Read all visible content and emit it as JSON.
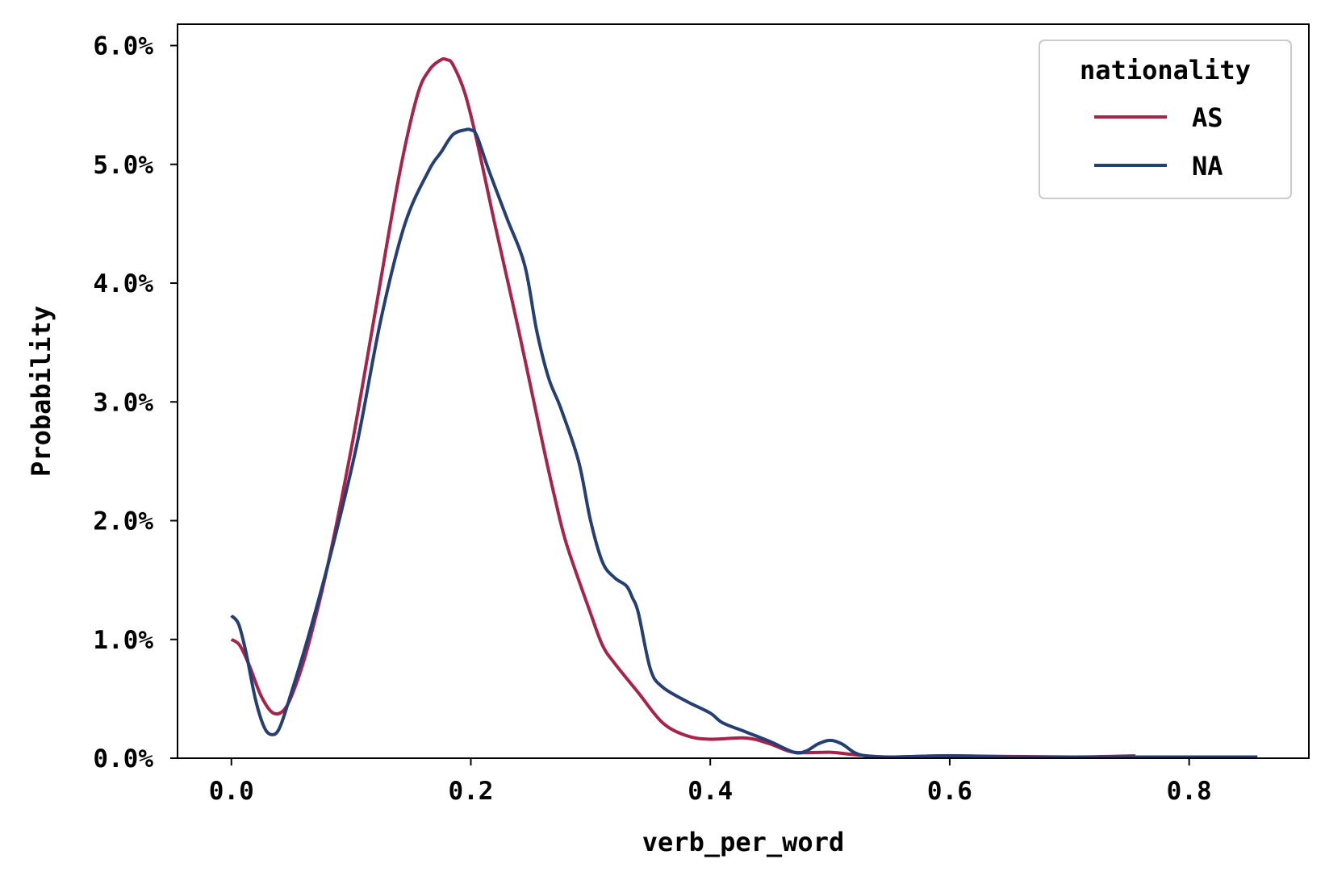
{
  "chart_data": {
    "type": "line",
    "xlabel": "verb_per_word",
    "ylabel": "Probability",
    "xlim": [
      -0.045,
      0.9
    ],
    "ylim": [
      0,
      0.0618
    ],
    "x_ticks": [
      0.0,
      0.2,
      0.4,
      0.6,
      0.8
    ],
    "x_tick_labels": [
      "0.0",
      "0.2",
      "0.4",
      "0.6",
      "0.8"
    ],
    "y_ticks": [
      0,
      0.01,
      0.02,
      0.03,
      0.04,
      0.05,
      0.06
    ],
    "y_tick_labels": [
      "0.0%",
      "1.0%",
      "2.0%",
      "3.0%",
      "4.0%",
      "5.0%",
      "6.0%"
    ],
    "grid": false,
    "legend": {
      "title": "nationality",
      "placement": "top-right"
    },
    "series": [
      {
        "name": "AS",
        "color": "#a8234a",
        "x": [
          0.0,
          0.007,
          0.015,
          0.025,
          0.035,
          0.045,
          0.055,
          0.065,
          0.08,
          0.1,
          0.12,
          0.14,
          0.155,
          0.165,
          0.175,
          0.18,
          0.185,
          0.195,
          0.205,
          0.22,
          0.24,
          0.26,
          0.27,
          0.28,
          0.3,
          0.31,
          0.32,
          0.34,
          0.36,
          0.38,
          0.4,
          0.43,
          0.45,
          0.47,
          0.5,
          0.52,
          0.55,
          0.6,
          0.7,
          0.755
        ],
        "y": [
          0.01,
          0.0095,
          0.0078,
          0.0052,
          0.0038,
          0.0042,
          0.0065,
          0.0098,
          0.016,
          0.026,
          0.0375,
          0.049,
          0.0557,
          0.0579,
          0.0588,
          0.0588,
          0.0584,
          0.056,
          0.052,
          0.045,
          0.036,
          0.0265,
          0.022,
          0.018,
          0.0122,
          0.0095,
          0.008,
          0.0055,
          0.003,
          0.0019,
          0.0016,
          0.0017,
          0.0012,
          0.0005,
          0.0005,
          0.0003,
          0.0001,
          0.0002,
          0.0001,
          0.0002
        ]
      },
      {
        "name": "NA",
        "color": "#243f74",
        "x": [
          0.0,
          0.006,
          0.012,
          0.02,
          0.027,
          0.033,
          0.04,
          0.05,
          0.065,
          0.085,
          0.105,
          0.125,
          0.145,
          0.165,
          0.175,
          0.185,
          0.195,
          0.2,
          0.205,
          0.215,
          0.23,
          0.245,
          0.255,
          0.265,
          0.275,
          0.29,
          0.3,
          0.31,
          0.32,
          0.33,
          0.335,
          0.34,
          0.35,
          0.36,
          0.38,
          0.4,
          0.41,
          0.43,
          0.45,
          0.47,
          0.48,
          0.49,
          0.5,
          0.51,
          0.52,
          0.53,
          0.55,
          0.6,
          0.65,
          0.7,
          0.8,
          0.857
        ],
        "y": [
          0.012,
          0.0113,
          0.009,
          0.005,
          0.0027,
          0.002,
          0.0025,
          0.0055,
          0.0105,
          0.018,
          0.0265,
          0.037,
          0.045,
          0.0495,
          0.051,
          0.0525,
          0.0529,
          0.0529,
          0.0524,
          0.0495,
          0.0455,
          0.0415,
          0.036,
          0.032,
          0.0295,
          0.025,
          0.02,
          0.0165,
          0.0152,
          0.0145,
          0.0135,
          0.0122,
          0.0075,
          0.006,
          0.0048,
          0.0038,
          0.003,
          0.0022,
          0.0014,
          0.0005,
          0.0006,
          0.0012,
          0.0015,
          0.0012,
          0.0005,
          0.0002,
          0.0001,
          0.0002,
          0.0001,
          0.0001,
          0.0001,
          0.0001
        ]
      }
    ]
  }
}
